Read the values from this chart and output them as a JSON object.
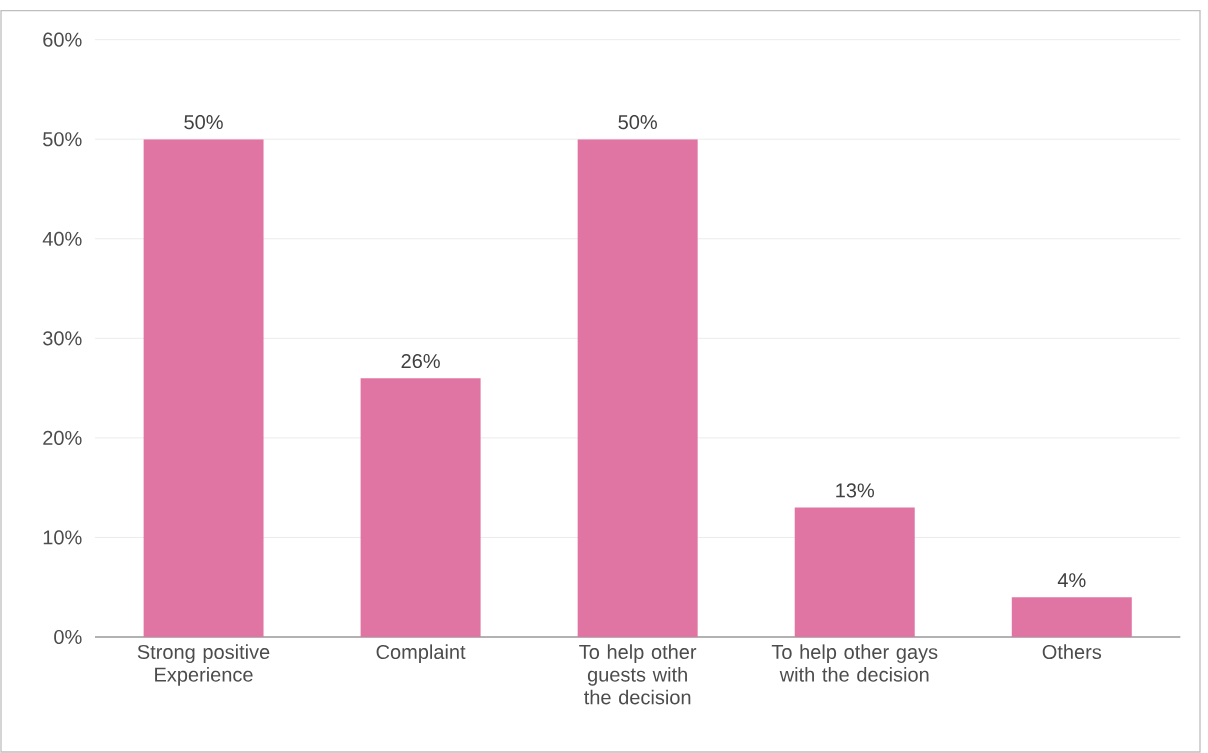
{
  "chart_data": {
    "type": "bar",
    "categories": [
      "Strong positive Experience",
      "Complaint",
      "To help other guests with the decision",
      "To help other gays with the decision",
      "Others"
    ],
    "values": [
      50,
      26,
      50,
      13,
      4
    ],
    "value_labels": [
      "50%",
      "26%",
      "50%",
      "13%",
      "4%"
    ],
    "color": "#e075a3",
    "ylim": [
      0,
      60
    ],
    "yticks": [
      {
        "value": 0,
        "label": "0%"
      },
      {
        "value": 10,
        "label": "10%"
      },
      {
        "value": 20,
        "label": "20%"
      },
      {
        "value": 30,
        "label": "30%"
      },
      {
        "value": 40,
        "label": "40%"
      },
      {
        "value": 50,
        "label": "50%"
      },
      {
        "value": 60,
        "label": "60%"
      }
    ],
    "grid": "y"
  }
}
